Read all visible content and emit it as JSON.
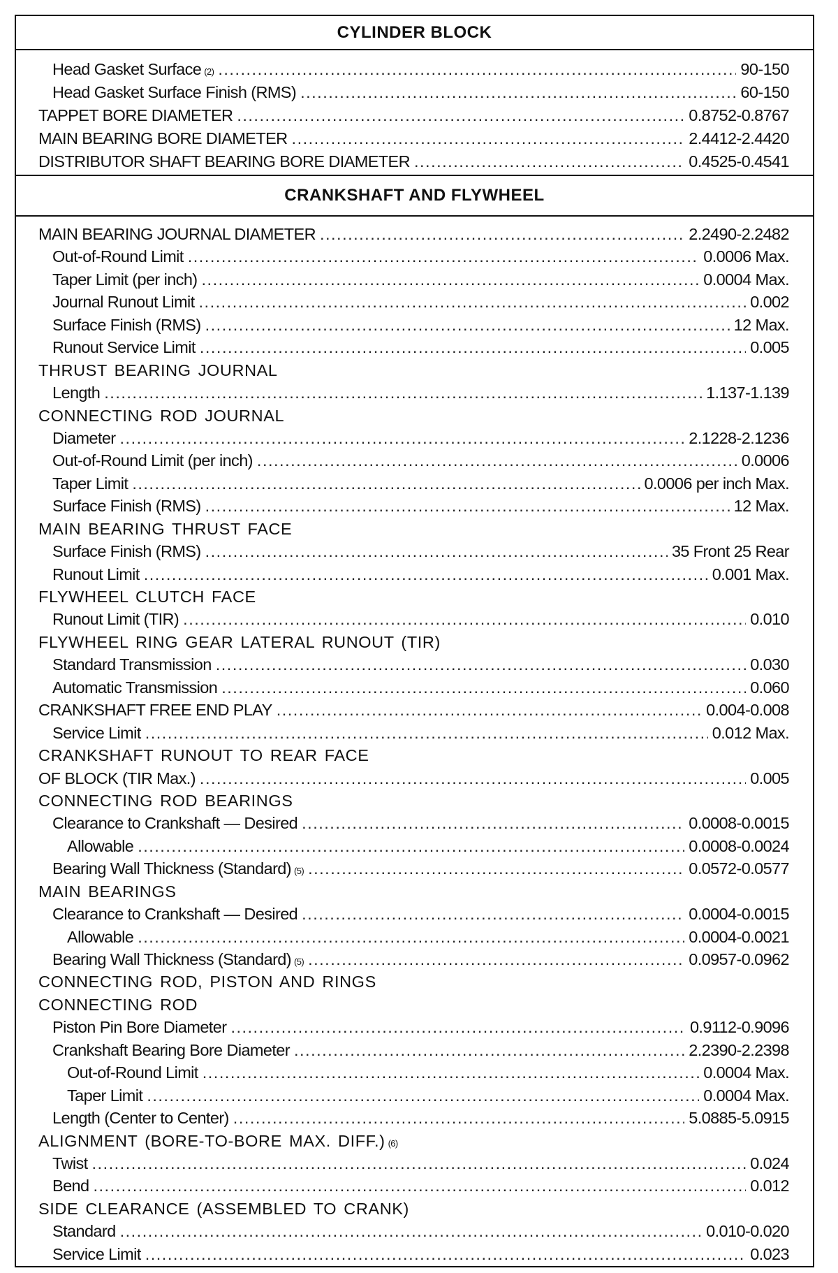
{
  "sections": [
    {
      "title": "CYLINDER BLOCK",
      "rows": [
        {
          "level": 1,
          "label": "Head Gasket Surface",
          "sup": "(2)",
          "value": "90-150"
        },
        {
          "level": 1,
          "label": "Head Gasket Surface Finish (RMS)",
          "value": "60-150"
        },
        {
          "level": 0,
          "label": "TAPPET BORE DIAMETER",
          "value": "0.8752-0.8767"
        },
        {
          "level": 0,
          "label": "MAIN BEARING BORE DIAMETER",
          "value": "2.4412-2.4420"
        },
        {
          "level": 0,
          "label": "DISTRIBUTOR SHAFT BEARING BORE DIAMETER",
          "value": "0.4525-0.4541"
        }
      ]
    },
    {
      "title": "CRANKSHAFT AND FLYWHEEL",
      "rows": [
        {
          "level": 0,
          "label": "MAIN BEARING JOURNAL DIAMETER",
          "value": "2.2490-2.2482"
        },
        {
          "level": 1,
          "label": "Out-of-Round Limit",
          "value": "0.0006 Max."
        },
        {
          "level": 1,
          "label": "Taper Limit (per inch)",
          "value": "0.0004 Max."
        },
        {
          "level": 1,
          "label": "Journal Runout Limit",
          "value": "0.002"
        },
        {
          "level": 1,
          "label": "Surface Finish (RMS)",
          "value": "12 Max."
        },
        {
          "level": 1,
          "label": "Runout Service Limit",
          "value": "0.005"
        },
        {
          "level": 0,
          "label": "THRUST BEARING JOURNAL"
        },
        {
          "level": 1,
          "label": "Length",
          "value": "1.137-1.139"
        },
        {
          "level": 0,
          "label": "CONNECTING ROD JOURNAL"
        },
        {
          "level": 1,
          "label": "Diameter",
          "value": "2.1228-2.1236"
        },
        {
          "level": 1,
          "label": "Out-of-Round Limit (per inch)",
          "value": "0.0006"
        },
        {
          "level": 1,
          "label": "Taper Limit",
          "value": "0.0006 per inch Max."
        },
        {
          "level": 1,
          "label": "Surface Finish (RMS)",
          "value": "12 Max."
        },
        {
          "level": 0,
          "label": "MAIN BEARING THRUST FACE"
        },
        {
          "level": 1,
          "label": "Surface Finish (RMS)",
          "value": "35 Front 25 Rear"
        },
        {
          "level": 1,
          "label": "Runout Limit",
          "value": "0.001 Max."
        },
        {
          "level": 0,
          "label": "FLYWHEEL CLUTCH FACE"
        },
        {
          "level": 1,
          "label": "Runout Limit (TIR)",
          "value": "0.010"
        },
        {
          "level": 0,
          "label": "FLYWHEEL RING GEAR LATERAL RUNOUT (TIR)"
        },
        {
          "level": 1,
          "label": "Standard Transmission",
          "value": "0.030"
        },
        {
          "level": 1,
          "label": "Automatic Transmission",
          "value": "0.060"
        },
        {
          "level": 0,
          "label": "CRANKSHAFT FREE END PLAY",
          "value": "0.004-0.008"
        },
        {
          "level": 1,
          "label": "Service Limit",
          "value": "0.012 Max."
        },
        {
          "level": 0,
          "label": "CRANKSHAFT RUNOUT TO REAR FACE"
        },
        {
          "level": 0,
          "label": "OF BLOCK (TIR Max.)",
          "value": "0.005"
        },
        {
          "level": 0,
          "label": "CONNECTING ROD BEARINGS"
        },
        {
          "level": 1,
          "label": "Clearance to Crankshaft — Desired",
          "value": "0.0008-0.0015"
        },
        {
          "level": 2,
          "label": "Allowable",
          "value": "0.0008-0.0024"
        },
        {
          "level": 1,
          "label": "Bearing Wall Thickness (Standard)",
          "sup": "(5)",
          "value": "0.0572-0.0577"
        },
        {
          "level": 0,
          "label": "MAIN BEARINGS"
        },
        {
          "level": 1,
          "label": "Clearance to Crankshaft — Desired",
          "value": "0.0004-0.0015"
        },
        {
          "level": 2,
          "label": "Allowable",
          "value": "0.0004-0.0021"
        },
        {
          "level": 1,
          "label": "Bearing Wall Thickness (Standard)",
          "sup": "(5)",
          "value": "0.0957-0.0962"
        },
        {
          "level": 0,
          "label": "CONNECTING ROD, PISTON AND RINGS"
        },
        {
          "level": 0,
          "label": "CONNECTING ROD"
        },
        {
          "level": 1,
          "label": "Piston Pin Bore Diameter",
          "value": "0.9112-0.9096"
        },
        {
          "level": 1,
          "label": "Crankshaft Bearing Bore Diameter",
          "value": "2.2390-2.2398"
        },
        {
          "level": 2,
          "label": "Out-of-Round Limit",
          "value": "0.0004 Max."
        },
        {
          "level": 2,
          "label": "Taper Limit",
          "value": "0.0004 Max."
        },
        {
          "level": 1,
          "label": "Length (Center to Center)",
          "value": "5.0885-5.0915"
        },
        {
          "level": 0,
          "label": "ALIGNMENT (BORE-TO-BORE MAX. DIFF.)",
          "sup": "(6)"
        },
        {
          "level": 1,
          "label": "Twist",
          "value": "0.024"
        },
        {
          "level": 1,
          "label": "Bend",
          "value": "0.012"
        },
        {
          "level": 0,
          "label": "SIDE CLEARANCE (ASSEMBLED TO CRANK)"
        },
        {
          "level": 1,
          "label": "Standard",
          "value": "0.010-0.020"
        },
        {
          "level": 1,
          "label": "Service Limit",
          "value": "0.023"
        }
      ]
    }
  ]
}
